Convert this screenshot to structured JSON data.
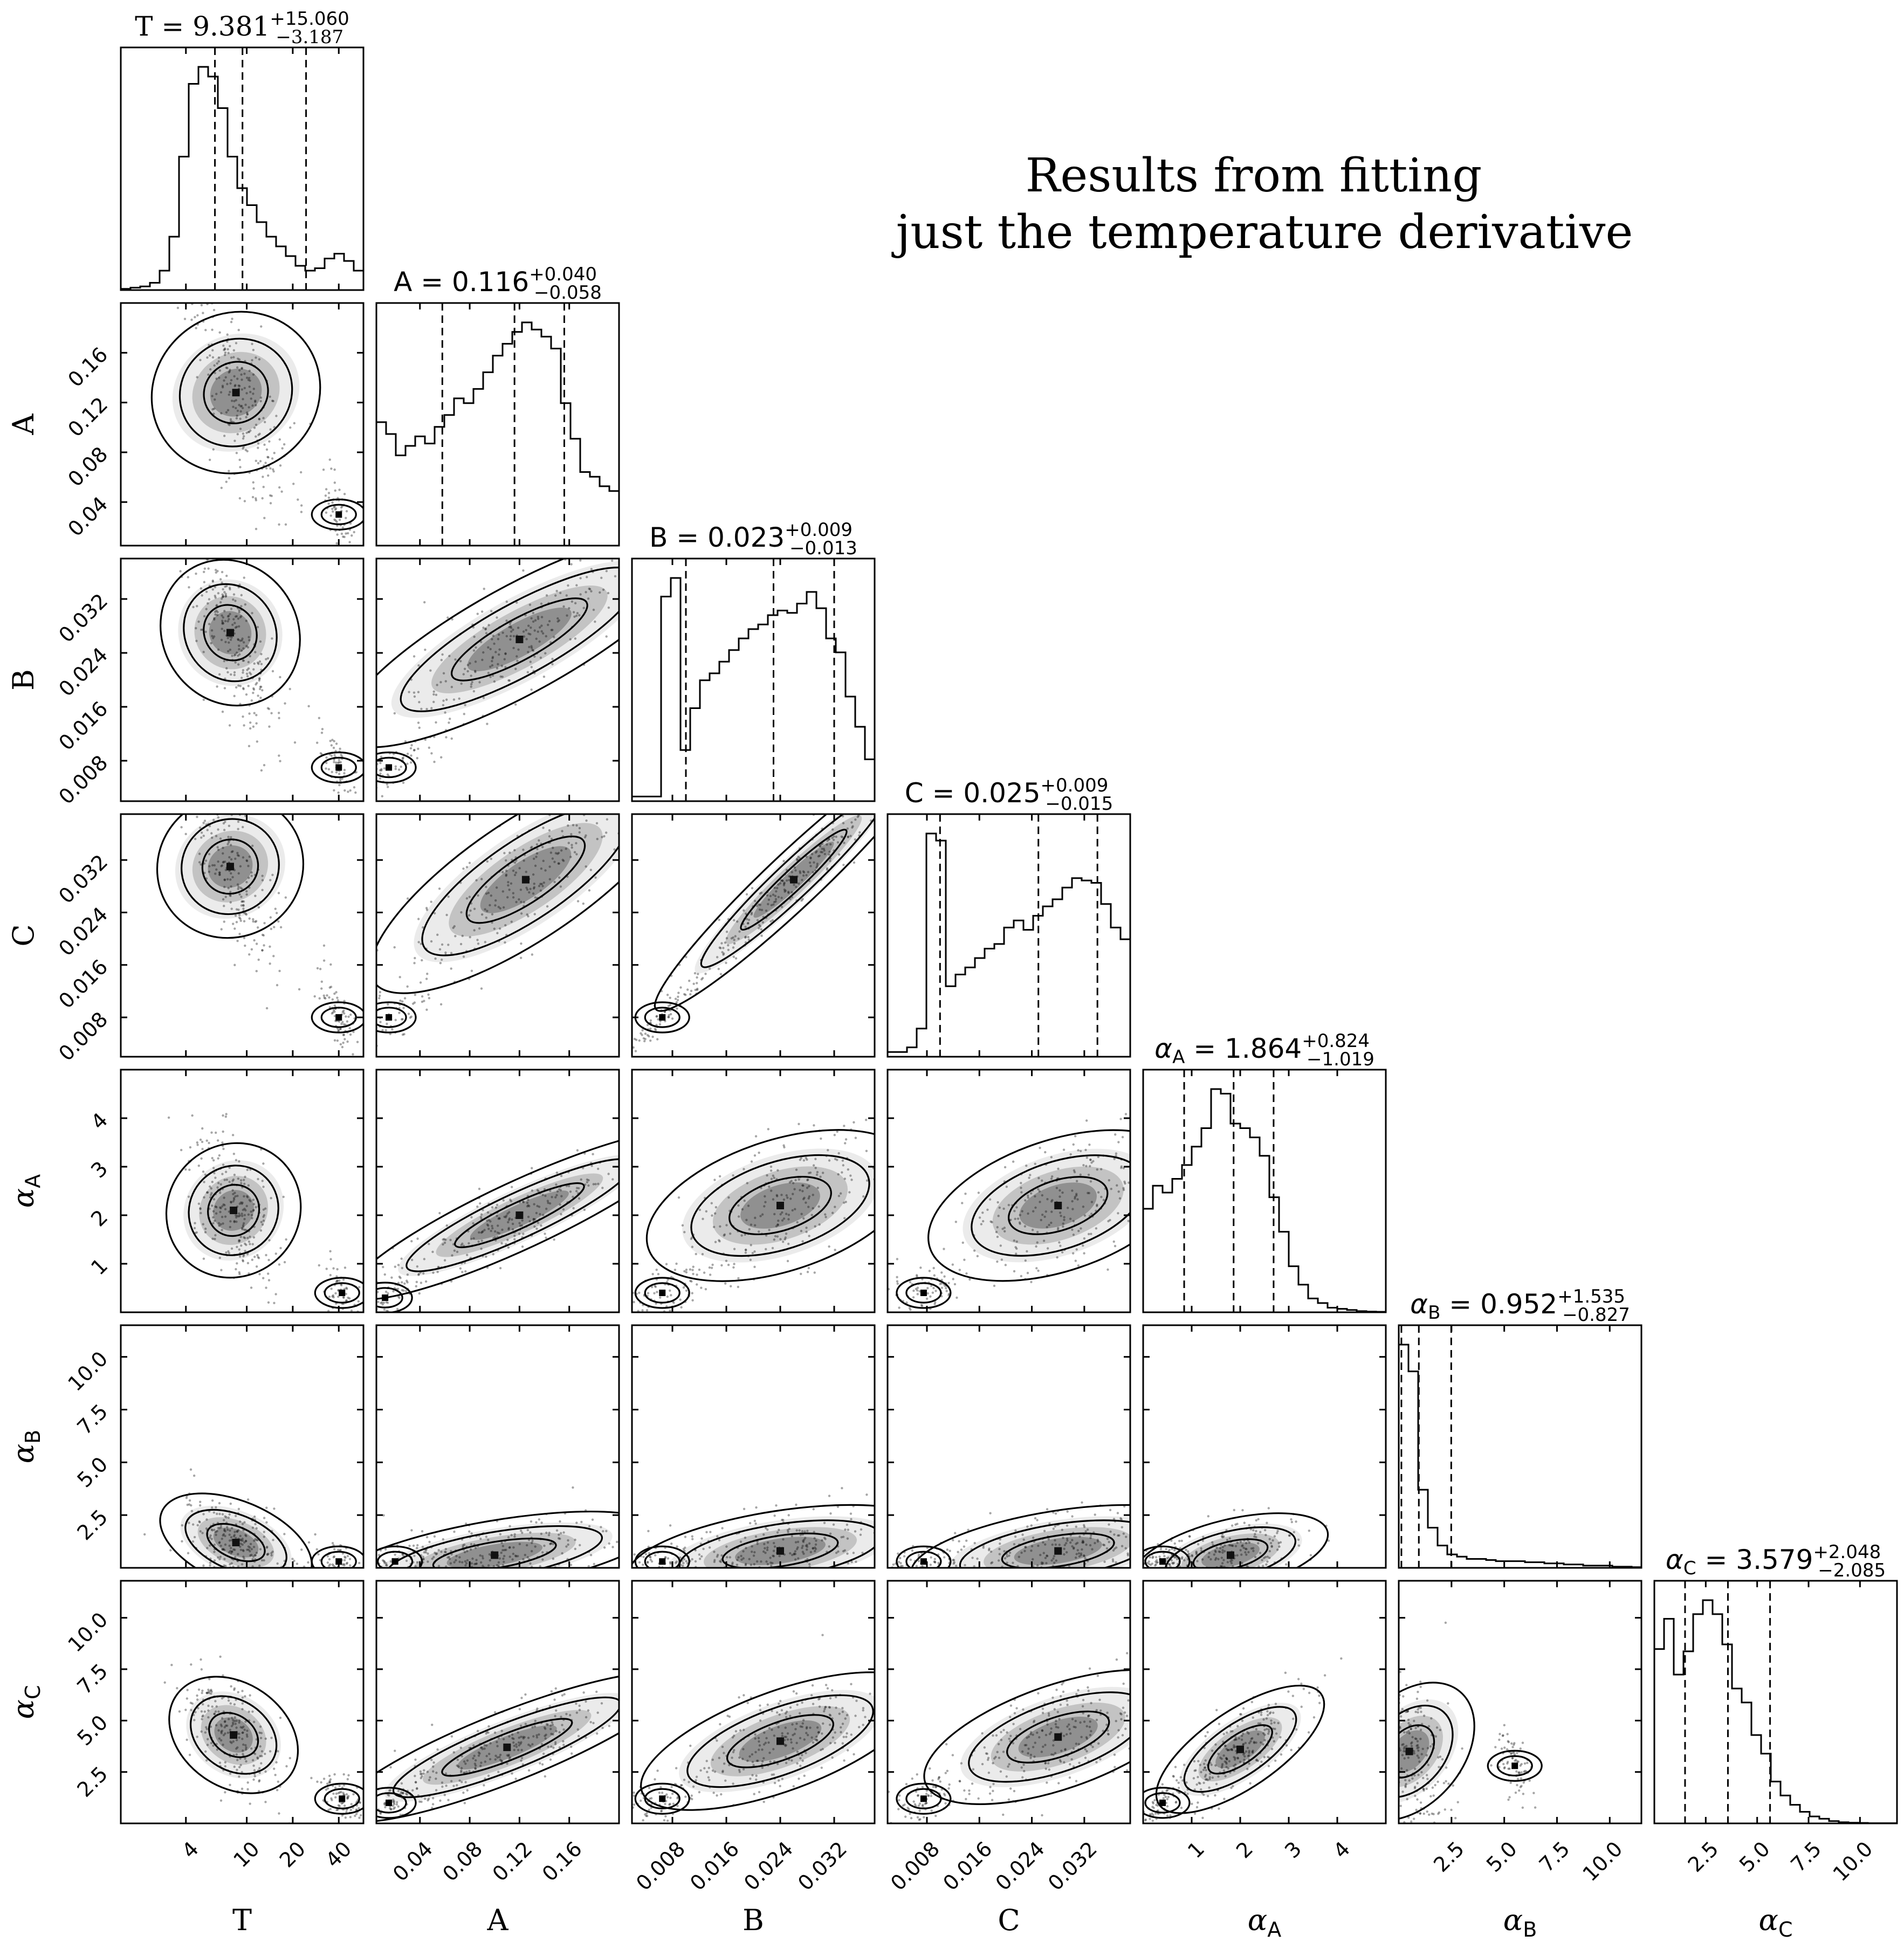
{
  "figure": {
    "title_lines": [
      "Results from fitting",
      "just the temperature derivative"
    ]
  },
  "chart_data": {
    "type": "corner",
    "parameters": [
      {
        "key": "T",
        "label": "T",
        "sub": "",
        "median": "9.381",
        "plus": "+15.060",
        "minus": "−3.187",
        "log": true,
        "range": [
          1.5,
          58
        ],
        "ticks": [
          4,
          10,
          20,
          40
        ],
        "tick_labels": [
          "4",
          "10",
          "20",
          "40"
        ],
        "quantiles": [
          6.194,
          9.381,
          24.441
        ],
        "hist": [
          0.5,
          1,
          1.5,
          3,
          8,
          22,
          55,
          85,
          92,
          88,
          75,
          55,
          42,
          35,
          28,
          22,
          18,
          14,
          10,
          8,
          9,
          13,
          15,
          12,
          8
        ]
      },
      {
        "key": "A",
        "label": "A",
        "sub": "",
        "median": "0.116",
        "plus": "+0.040",
        "minus": "−0.058",
        "log": false,
        "range": [
          0.005,
          0.2
        ],
        "ticks": [
          0.04,
          0.08,
          0.12,
          0.16
        ],
        "tick_labels": [
          "0.04",
          "0.08",
          "0.12",
          "0.16"
        ],
        "quantiles": [
          0.058,
          0.116,
          0.156
        ],
        "hist": [
          52,
          47,
          38,
          42,
          46,
          43,
          50,
          55,
          62,
          60,
          66,
          73,
          80,
          85,
          90,
          94,
          91,
          88,
          83,
          60,
          45,
          31,
          29,
          25,
          23
        ]
      },
      {
        "key": "B",
        "label": "B",
        "sub": "",
        "median": "0.023",
        "plus": "+0.009",
        "minus": "−0.013",
        "log": false,
        "range": [
          0.002,
          0.038
        ],
        "ticks": [
          0.008,
          0.016,
          0.024,
          0.032
        ],
        "tick_labels": [
          "0.008",
          "0.016",
          "0.024",
          "0.032"
        ],
        "quantiles": [
          0.01,
          0.023,
          0.032
        ],
        "hist": [
          2,
          2,
          2,
          88,
          96,
          22,
          40,
          52,
          55,
          60,
          65,
          70,
          74,
          76,
          80,
          82,
          81,
          85,
          90,
          83,
          70,
          64,
          45,
          32,
          18
        ]
      },
      {
        "key": "C",
        "label": "C",
        "sub": "",
        "median": "0.025",
        "plus": "+0.009",
        "minus": "−0.015",
        "log": false,
        "range": [
          0.002,
          0.039
        ],
        "ticks": [
          0.008,
          0.016,
          0.024,
          0.032
        ],
        "tick_labels": [
          "0.008",
          "0.016",
          "0.024",
          "0.032"
        ],
        "quantiles": [
          0.01,
          0.025,
          0.034
        ],
        "hist": [
          2,
          2,
          4,
          12,
          95,
          92,
          30,
          35,
          38,
          42,
          46,
          48,
          55,
          58,
          54,
          60,
          64,
          67,
          72,
          76,
          75,
          74,
          65,
          55,
          50
        ]
      },
      {
        "key": "aA",
        "label": "α",
        "sub": "A",
        "median": "1.864",
        "plus": "+0.824",
        "minus": "−1.019",
        "log": false,
        "range": [
          0.0,
          5.0
        ],
        "ticks": [
          1,
          2,
          3,
          4
        ],
        "tick_labels": [
          "1",
          "2",
          "3",
          "4"
        ],
        "quantiles": [
          0.845,
          1.864,
          2.688
        ],
        "hist": [
          45,
          55,
          52,
          58,
          64,
          72,
          80,
          97,
          95,
          82,
          80,
          76,
          68,
          50,
          35,
          20,
          12,
          6,
          4,
          2,
          1.5,
          1,
          0.5,
          0.3,
          0.2
        ]
      },
      {
        "key": "aB",
        "label": "α",
        "sub": "B",
        "median": "0.952",
        "plus": "+1.535",
        "minus": "−0.827",
        "log": false,
        "range": [
          0.0,
          11.5
        ],
        "ticks": [
          2.5,
          5.0,
          7.5,
          10.0
        ],
        "tick_labels": [
          "2.5",
          "5.0",
          "7.5",
          "10.0"
        ],
        "quantiles": [
          0.125,
          0.952,
          2.487
        ],
        "hist": [
          100,
          88,
          35,
          18,
          10,
          6,
          5,
          4,
          4,
          3.5,
          3,
          3,
          3,
          2.5,
          2.5,
          2,
          2,
          1.5,
          1.5,
          1,
          1,
          1,
          0.5,
          0.5,
          0.3
        ]
      },
      {
        "key": "aC",
        "label": "α",
        "sub": "C",
        "median": "3.579",
        "plus": "+2.048",
        "minus": "−2.085",
        "log": false,
        "range": [
          0.0,
          11.8
        ],
        "ticks": [
          2.5,
          5.0,
          7.5,
          10.0
        ],
        "tick_labels": [
          "2.5",
          "5.0",
          "7.5",
          "10.0"
        ],
        "quantiles": [
          1.494,
          3.579,
          5.627
        ],
        "hist": [
          75,
          88,
          64,
          74,
          90,
          96,
          90,
          77,
          58,
          52,
          38,
          30,
          18,
          12,
          8,
          5,
          3,
          2,
          1,
          0.5,
          0.3,
          0.2,
          0.1,
          0.1,
          0.1
        ]
      }
    ],
    "pairs": [
      {
        "x": "T",
        "y": "A",
        "peak": [
          8.5,
          0.128
        ],
        "width": [
          0.18,
          0.055
        ],
        "rho": -0.75,
        "tail": [
          40,
          0.03
        ]
      },
      {
        "x": "T",
        "y": "B",
        "peak": [
          7.8,
          0.027
        ],
        "width": [
          0.17,
          0.008
        ],
        "rho": -0.75,
        "tail": [
          40,
          0.007
        ]
      },
      {
        "x": "A",
        "y": "B",
        "peak": [
          0.12,
          0.026
        ],
        "width": [
          0.055,
          0.007
        ],
        "rho": 0.8,
        "tail": [
          0.015,
          0.007
        ]
      },
      {
        "x": "T",
        "y": "C",
        "peak": [
          7.8,
          0.031
        ],
        "width": [
          0.16,
          0.009
        ],
        "rho": -0.75,
        "tail": [
          40,
          0.008
        ]
      },
      {
        "x": "A",
        "y": "C",
        "peak": [
          0.125,
          0.029
        ],
        "width": [
          0.05,
          0.008
        ],
        "rho": 0.8,
        "tail": [
          0.015,
          0.008
        ]
      },
      {
        "x": "B",
        "y": "C",
        "peak": [
          0.026,
          0.029
        ],
        "width": [
          0.009,
          0.009
        ],
        "rho": 0.97,
        "tail": [
          0.0065,
          0.008
        ]
      },
      {
        "x": "T",
        "y": "aA",
        "peak": [
          8.2,
          2.1
        ],
        "width": [
          0.16,
          0.9
        ],
        "rho": -0.55,
        "tail": [
          42,
          0.4
        ]
      },
      {
        "x": "A",
        "y": "aA",
        "peak": [
          0.12,
          2.0
        ],
        "width": [
          0.05,
          0.7
        ],
        "rho": 0.85,
        "tail": [
          0.012,
          0.3
        ]
      },
      {
        "x": "B",
        "y": "aA",
        "peak": [
          0.024,
          2.2
        ],
        "width": [
          0.008,
          0.8
        ],
        "rho": 0.45,
        "tail": [
          0.0065,
          0.4
        ]
      },
      {
        "x": "C",
        "y": "aA",
        "peak": [
          0.028,
          2.2
        ],
        "width": [
          0.008,
          0.8
        ],
        "rho": 0.45,
        "tail": [
          0.0075,
          0.4
        ]
      },
      {
        "x": "T",
        "y": "aB",
        "peak": [
          8.5,
          1.2
        ],
        "width": [
          0.2,
          1.2
        ],
        "rho": -0.5,
        "tail": [
          40,
          0.3
        ]
      },
      {
        "x": "A",
        "y": "aB",
        "peak": [
          0.1,
          0.6
        ],
        "width": [
          0.05,
          1.0
        ],
        "rho": 0.5,
        "tail": [
          0.02,
          0.3
        ]
      },
      {
        "x": "B",
        "y": "aB",
        "peak": [
          0.024,
          0.8
        ],
        "width": [
          0.009,
          1.1
        ],
        "rho": 0.4,
        "tail": [
          0.0065,
          0.3
        ]
      },
      {
        "x": "C",
        "y": "aB",
        "peak": [
          0.028,
          0.8
        ],
        "width": [
          0.009,
          1.1
        ],
        "rho": 0.4,
        "tail": [
          0.0075,
          0.3
        ]
      },
      {
        "x": "aA",
        "y": "aB",
        "peak": [
          1.8,
          0.6
        ],
        "width": [
          0.8,
          1.0
        ],
        "rho": 0.45,
        "tail": [
          0.4,
          0.3
        ]
      },
      {
        "x": "T",
        "y": "aC",
        "peak": [
          8.2,
          4.3
        ],
        "width": [
          0.17,
          1.6
        ],
        "rho": -0.55,
        "tail": [
          42,
          1.2
        ]
      },
      {
        "x": "A",
        "y": "aC",
        "peak": [
          0.11,
          3.7
        ],
        "width": [
          0.05,
          1.5
        ],
        "rho": 0.8,
        "tail": [
          0.015,
          1.0
        ]
      },
      {
        "x": "B",
        "y": "aC",
        "peak": [
          0.024,
          4.0
        ],
        "width": [
          0.008,
          1.6
        ],
        "rho": 0.6,
        "tail": [
          0.0065,
          1.2
        ]
      },
      {
        "x": "C",
        "y": "aC",
        "peak": [
          0.028,
          4.2
        ],
        "width": [
          0.008,
          1.6
        ],
        "rho": 0.55,
        "tail": [
          0.0075,
          1.2
        ]
      },
      {
        "x": "aA",
        "y": "aC",
        "peak": [
          2.0,
          3.6
        ],
        "width": [
          0.7,
          1.5
        ],
        "rho": 0.75,
        "tail": [
          0.4,
          1.0
        ]
      },
      {
        "x": "aB",
        "y": "aC",
        "peak": [
          0.5,
          3.5
        ],
        "width": [
          1.0,
          2.2
        ],
        "rho": -0.4,
        "tail": [
          5.5,
          2.8
        ]
      }
    ]
  }
}
